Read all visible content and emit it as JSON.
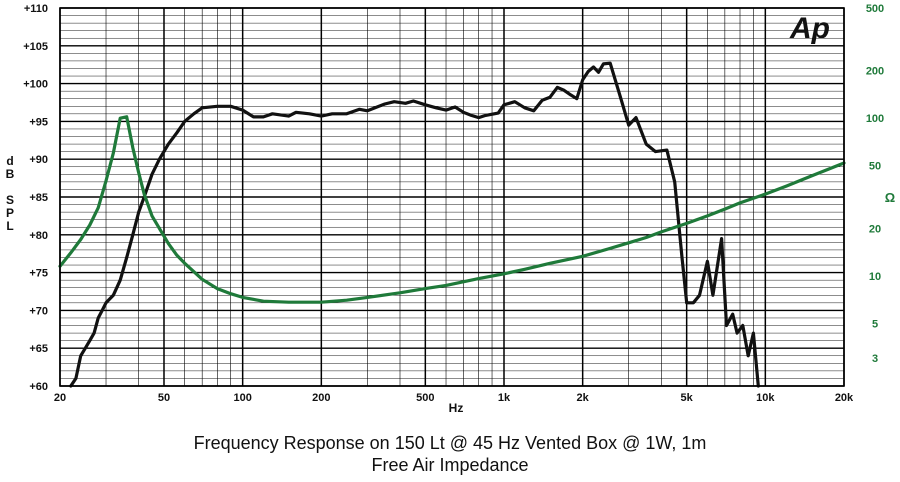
{
  "logo_text": "Ap",
  "caption_line1": "Frequency Response on 150 Lt @ 45 Hz Vented Box @ 1W, 1m",
  "caption_line2": "Free Air Impedance",
  "chart_data": {
    "type": "line",
    "x_scale": "log",
    "xlabel": "Hz",
    "ylabel": "dB SPL",
    "y2label": "Ω",
    "xlim": [
      20,
      20000
    ],
    "ylim": [
      60,
      110
    ],
    "y2lim": [
      2,
      500
    ],
    "y2_scale": "log",
    "grid": true,
    "x_tick_labels": [
      "20",
      "50",
      "100",
      "200",
      "500",
      "1k",
      "2k",
      "5k",
      "10k",
      "20k"
    ],
    "y_tick_labels": [
      "+60",
      "+65",
      "+70",
      "+75",
      "+80",
      "+85",
      "+90",
      "+95",
      "+100",
      "+105",
      "+110"
    ],
    "y2_tick_labels": [
      "3",
      "5",
      "10",
      "20",
      "50",
      "100",
      "200",
      "500"
    ],
    "series": [
      {
        "axis": "left",
        "color": "#111111",
        "points": [
          [
            22,
            60
          ],
          [
            23,
            61
          ],
          [
            24,
            64
          ],
          [
            25,
            65
          ],
          [
            26,
            66
          ],
          [
            27,
            67
          ],
          [
            28,
            69
          ],
          [
            29,
            70
          ],
          [
            30,
            71
          ],
          [
            32,
            72
          ],
          [
            34,
            74
          ],
          [
            36,
            77
          ],
          [
            38,
            80
          ],
          [
            40,
            83
          ],
          [
            42,
            85
          ],
          [
            45,
            88
          ],
          [
            48,
            90
          ],
          [
            52,
            92
          ],
          [
            56,
            93.5
          ],
          [
            60,
            95
          ],
          [
            65,
            96
          ],
          [
            70,
            96.8
          ],
          [
            80,
            97
          ],
          [
            90,
            97
          ],
          [
            100,
            96.5
          ],
          [
            110,
            95.6
          ],
          [
            120,
            95.6
          ],
          [
            130,
            96
          ],
          [
            150,
            95.7
          ],
          [
            160,
            96.2
          ],
          [
            180,
            96
          ],
          [
            200,
            95.7
          ],
          [
            220,
            96
          ],
          [
            250,
            96
          ],
          [
            280,
            96.6
          ],
          [
            300,
            96.4
          ],
          [
            350,
            97.3
          ],
          [
            380,
            97.6
          ],
          [
            420,
            97.4
          ],
          [
            450,
            97.7
          ],
          [
            500,
            97.2
          ],
          [
            550,
            96.8
          ],
          [
            600,
            96.5
          ],
          [
            650,
            96.9
          ],
          [
            700,
            96.2
          ],
          [
            750,
            95.8
          ],
          [
            800,
            95.5
          ],
          [
            850,
            95.8
          ],
          [
            950,
            96.1
          ],
          [
            1000,
            97.2
          ],
          [
            1100,
            97.6
          ],
          [
            1200,
            96.8
          ],
          [
            1300,
            96.4
          ],
          [
            1400,
            97.8
          ],
          [
            1500,
            98.2
          ],
          [
            1600,
            99.5
          ],
          [
            1700,
            99.1
          ],
          [
            1800,
            98.5
          ],
          [
            1900,
            98
          ],
          [
            2000,
            100.5
          ],
          [
            2100,
            101.6
          ],
          [
            2200,
            102.2
          ],
          [
            2300,
            101.5
          ],
          [
            2400,
            102.6
          ],
          [
            2550,
            102.7
          ],
          [
            2800,
            98
          ],
          [
            3000,
            94.5
          ],
          [
            3200,
            95.5
          ],
          [
            3500,
            92
          ],
          [
            3800,
            91
          ],
          [
            4200,
            91.2
          ],
          [
            4500,
            87
          ],
          [
            4800,
            77
          ],
          [
            5000,
            71
          ],
          [
            5300,
            71
          ],
          [
            5600,
            72
          ],
          [
            6000,
            76.5
          ],
          [
            6300,
            72
          ],
          [
            6800,
            79.5
          ],
          [
            7100,
            68
          ],
          [
            7500,
            69.5
          ],
          [
            7800,
            67
          ],
          [
            8200,
            68
          ],
          [
            8600,
            64
          ],
          [
            9000,
            67
          ],
          [
            9400,
            60
          ]
        ]
      },
      {
        "axis": "right",
        "color": "#1f7a3a",
        "points": [
          [
            20,
            11.5
          ],
          [
            22,
            14
          ],
          [
            24,
            17
          ],
          [
            26,
            21
          ],
          [
            28,
            27
          ],
          [
            30,
            40
          ],
          [
            32,
            60
          ],
          [
            34,
            100
          ],
          [
            36,
            102
          ],
          [
            38,
            65
          ],
          [
            40,
            45
          ],
          [
            42,
            33
          ],
          [
            45,
            24
          ],
          [
            48,
            20
          ],
          [
            52,
            16
          ],
          [
            56,
            13.5
          ],
          [
            60,
            12
          ],
          [
            70,
            9.5
          ],
          [
            80,
            8.3
          ],
          [
            90,
            7.7
          ],
          [
            100,
            7.3
          ],
          [
            120,
            6.9
          ],
          [
            150,
            6.8
          ],
          [
            200,
            6.8
          ],
          [
            250,
            7
          ],
          [
            300,
            7.3
          ],
          [
            400,
            7.8
          ],
          [
            500,
            8.3
          ],
          [
            600,
            8.7
          ],
          [
            800,
            9.6
          ],
          [
            1000,
            10.3
          ],
          [
            1200,
            11
          ],
          [
            1500,
            12
          ],
          [
            2000,
            13.3
          ],
          [
            2500,
            14.8
          ],
          [
            3000,
            16.2
          ],
          [
            3500,
            17.5
          ],
          [
            4000,
            19
          ],
          [
            5000,
            21.5
          ],
          [
            6000,
            24
          ],
          [
            7000,
            26.5
          ],
          [
            8000,
            29
          ],
          [
            10000,
            33
          ],
          [
            12000,
            37
          ],
          [
            15000,
            43
          ],
          [
            20000,
            52
          ]
        ]
      }
    ]
  },
  "colors": {
    "spl_curve": "#111111",
    "impedance_curve": "#1f7a3a",
    "right_axis_text": "#1f7a3a",
    "grid": "#000000"
  }
}
